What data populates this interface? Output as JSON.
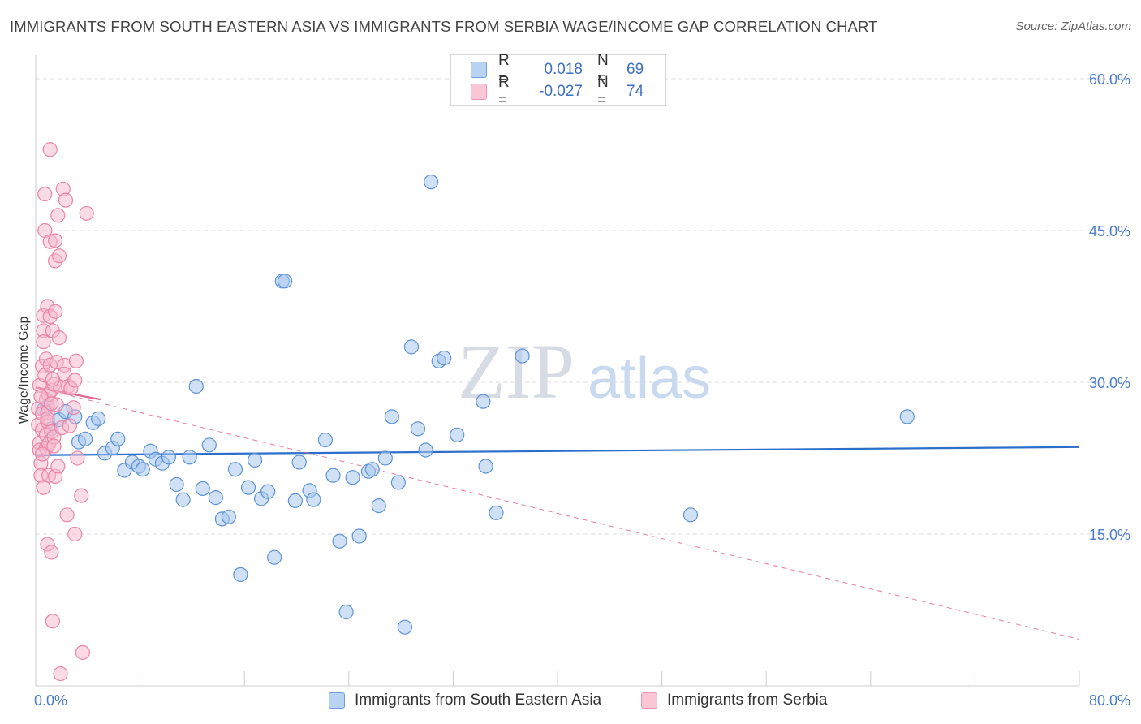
{
  "title": "IMMIGRANTS FROM SOUTH EASTERN ASIA VS IMMIGRANTS FROM SERBIA WAGE/INCOME GAP CORRELATION CHART",
  "source": "Source: ZipAtlas.com",
  "watermark": {
    "zip": "ZIP",
    "atlas": "atlas"
  },
  "colors": {
    "blue_fill": "#a9c8ef",
    "blue_stroke": "#5d93d6",
    "blue_line": "#2c6fcb",
    "pink_fill": "#f6b7cc",
    "pink_stroke": "#e985a6",
    "pink_line": "#e56592",
    "axis_text": "#4a7cc9",
    "grid": "#dddddd"
  },
  "legend": {
    "rows": [
      {
        "r_label": "R =",
        "r_value": "0.018",
        "n_label": "N =",
        "n_value": "69"
      },
      {
        "r_label": "R =",
        "r_value": "-0.027",
        "n_label": "N =",
        "n_value": "74"
      }
    ]
  },
  "chart_data": {
    "type": "scatter",
    "title": "IMMIGRANTS FROM SOUTH EASTERN ASIA VS IMMIGRANTS FROM SERBIA WAGE/INCOME GAP CORRELATION CHART",
    "xlabel": "",
    "ylabel": "Wage/Income Gap",
    "xlim": [
      0,
      80
    ],
    "ylim": [
      0,
      60
    ],
    "x_tick_labels": [
      "0.0%",
      "80.0%"
    ],
    "y_ticks": [
      15,
      30,
      45,
      60
    ],
    "y_tick_labels": [
      "15.0%",
      "30.0%",
      "45.0%",
      "60.0%"
    ],
    "legend_position": "top-center",
    "series": [
      {
        "name": "Immigrants from South Eastern Asia",
        "color": "#a9c8ef",
        "r": 0.018,
        "n": 69,
        "trend": {
          "x": [
            0,
            80
          ],
          "y": [
            22.8,
            23.6
          ],
          "style": "solid"
        },
        "points": [
          [
            0.6,
            27.3
          ],
          [
            1.2,
            25.4
          ],
          [
            1.8,
            26.3
          ],
          [
            2.3,
            27.1
          ],
          [
            3.0,
            26.6
          ],
          [
            3.3,
            24.1
          ],
          [
            3.8,
            24.4
          ],
          [
            4.4,
            26.0
          ],
          [
            4.8,
            26.4
          ],
          [
            5.3,
            23.0
          ],
          [
            5.9,
            23.5
          ],
          [
            6.3,
            24.4
          ],
          [
            6.8,
            21.3
          ],
          [
            7.4,
            22.1
          ],
          [
            7.9,
            21.7
          ],
          [
            8.2,
            21.4
          ],
          [
            8.8,
            23.2
          ],
          [
            9.2,
            22.4
          ],
          [
            9.7,
            22.0
          ],
          [
            10.2,
            22.6
          ],
          [
            10.8,
            19.9
          ],
          [
            11.3,
            18.4
          ],
          [
            11.8,
            22.6
          ],
          [
            12.3,
            29.6
          ],
          [
            12.8,
            19.5
          ],
          [
            13.3,
            23.8
          ],
          [
            13.8,
            18.6
          ],
          [
            14.3,
            16.5
          ],
          [
            14.8,
            16.7
          ],
          [
            15.3,
            21.4
          ],
          [
            15.7,
            11.0
          ],
          [
            16.3,
            19.6
          ],
          [
            16.8,
            22.3
          ],
          [
            17.3,
            18.5
          ],
          [
            17.8,
            19.2
          ],
          [
            18.3,
            12.7
          ],
          [
            18.9,
            40.0
          ],
          [
            19.1,
            40.0
          ],
          [
            19.9,
            18.3
          ],
          [
            20.2,
            22.1
          ],
          [
            21.0,
            19.3
          ],
          [
            21.3,
            18.4
          ],
          [
            22.2,
            24.3
          ],
          [
            22.8,
            20.8
          ],
          [
            23.3,
            14.3
          ],
          [
            23.8,
            7.3
          ],
          [
            24.3,
            20.6
          ],
          [
            24.8,
            14.8
          ],
          [
            25.5,
            21.2
          ],
          [
            25.8,
            21.4
          ],
          [
            26.3,
            17.8
          ],
          [
            26.8,
            22.5
          ],
          [
            27.3,
            26.6
          ],
          [
            27.8,
            20.1
          ],
          [
            28.3,
            5.8
          ],
          [
            28.8,
            33.5
          ],
          [
            29.3,
            25.4
          ],
          [
            29.9,
            23.3
          ],
          [
            30.3,
            49.8
          ],
          [
            30.9,
            32.1
          ],
          [
            31.3,
            32.4
          ],
          [
            32.3,
            24.8
          ],
          [
            34.3,
            28.1
          ],
          [
            34.5,
            21.7
          ],
          [
            35.3,
            17.1
          ],
          [
            37.3,
            32.6
          ],
          [
            50.2,
            16.9
          ],
          [
            66.8,
            26.6
          ],
          [
            0.9,
            27.6
          ]
        ]
      },
      {
        "name": "Immigrants from Serbia",
        "color": "#f6b7cc",
        "r": -0.027,
        "n": 74,
        "trend": {
          "x": [
            0,
            5
          ],
          "y": [
            29.5,
            28.3
          ],
          "style": "solid",
          "dashed_x": [
            0,
            80
          ],
          "dashed_y": [
            29.5,
            4.6
          ]
        },
        "points": [
          [
            0.2,
            27.4
          ],
          [
            0.2,
            25.8
          ],
          [
            0.3,
            24.0
          ],
          [
            0.3,
            23.3
          ],
          [
            0.3,
            29.7
          ],
          [
            0.4,
            22.0
          ],
          [
            0.4,
            20.8
          ],
          [
            0.5,
            26.9
          ],
          [
            0.5,
            25.3
          ],
          [
            0.5,
            31.6
          ],
          [
            0.6,
            36.6
          ],
          [
            0.6,
            35.1
          ],
          [
            0.6,
            19.6
          ],
          [
            0.7,
            45.0
          ],
          [
            0.7,
            48.6
          ],
          [
            0.7,
            30.7
          ],
          [
            0.8,
            28.3
          ],
          [
            0.8,
            24.8
          ],
          [
            0.8,
            23.5
          ],
          [
            0.8,
            32.3
          ],
          [
            0.9,
            37.5
          ],
          [
            0.9,
            27.0
          ],
          [
            0.9,
            26.1
          ],
          [
            0.9,
            14.0
          ],
          [
            1.0,
            28.8
          ],
          [
            1.0,
            23.9
          ],
          [
            1.0,
            20.8
          ],
          [
            1.1,
            43.9
          ],
          [
            1.1,
            36.5
          ],
          [
            1.1,
            31.7
          ],
          [
            1.1,
            53.0
          ],
          [
            1.2,
            29.2
          ],
          [
            1.2,
            25.1
          ],
          [
            1.2,
            13.2
          ],
          [
            1.3,
            35.1
          ],
          [
            1.3,
            6.4
          ],
          [
            1.4,
            29.8
          ],
          [
            1.4,
            24.6
          ],
          [
            1.4,
            23.7
          ],
          [
            1.5,
            44.0
          ],
          [
            1.5,
            42.0
          ],
          [
            1.5,
            37.0
          ],
          [
            1.5,
            20.7
          ],
          [
            1.6,
            32.0
          ],
          [
            1.6,
            27.8
          ],
          [
            1.7,
            46.5
          ],
          [
            1.8,
            34.4
          ],
          [
            1.8,
            42.5
          ],
          [
            1.9,
            29.5
          ],
          [
            1.9,
            1.2
          ],
          [
            2.0,
            25.5
          ],
          [
            2.1,
            49.1
          ],
          [
            2.2,
            31.7
          ],
          [
            2.2,
            30.8
          ],
          [
            2.3,
            48.0
          ],
          [
            2.4,
            16.9
          ],
          [
            2.5,
            29.6
          ],
          [
            2.6,
            25.7
          ],
          [
            2.7,
            29.4
          ],
          [
            3.0,
            30.2
          ],
          [
            3.0,
            15.0
          ],
          [
            3.1,
            32.1
          ],
          [
            3.2,
            22.5
          ],
          [
            3.5,
            18.8
          ],
          [
            3.6,
            3.3
          ],
          [
            3.9,
            46.7
          ],
          [
            0.6,
            34.0
          ],
          [
            0.9,
            26.4
          ],
          [
            1.3,
            30.3
          ],
          [
            0.4,
            28.6
          ],
          [
            1.2,
            27.9
          ],
          [
            1.7,
            21.7
          ],
          [
            0.5,
            22.9
          ],
          [
            2.9,
            27.5
          ]
        ]
      }
    ]
  },
  "bottom_legend": {
    "items": [
      "Immigrants from South Eastern Asia",
      "Immigrants from Serbia"
    ]
  }
}
